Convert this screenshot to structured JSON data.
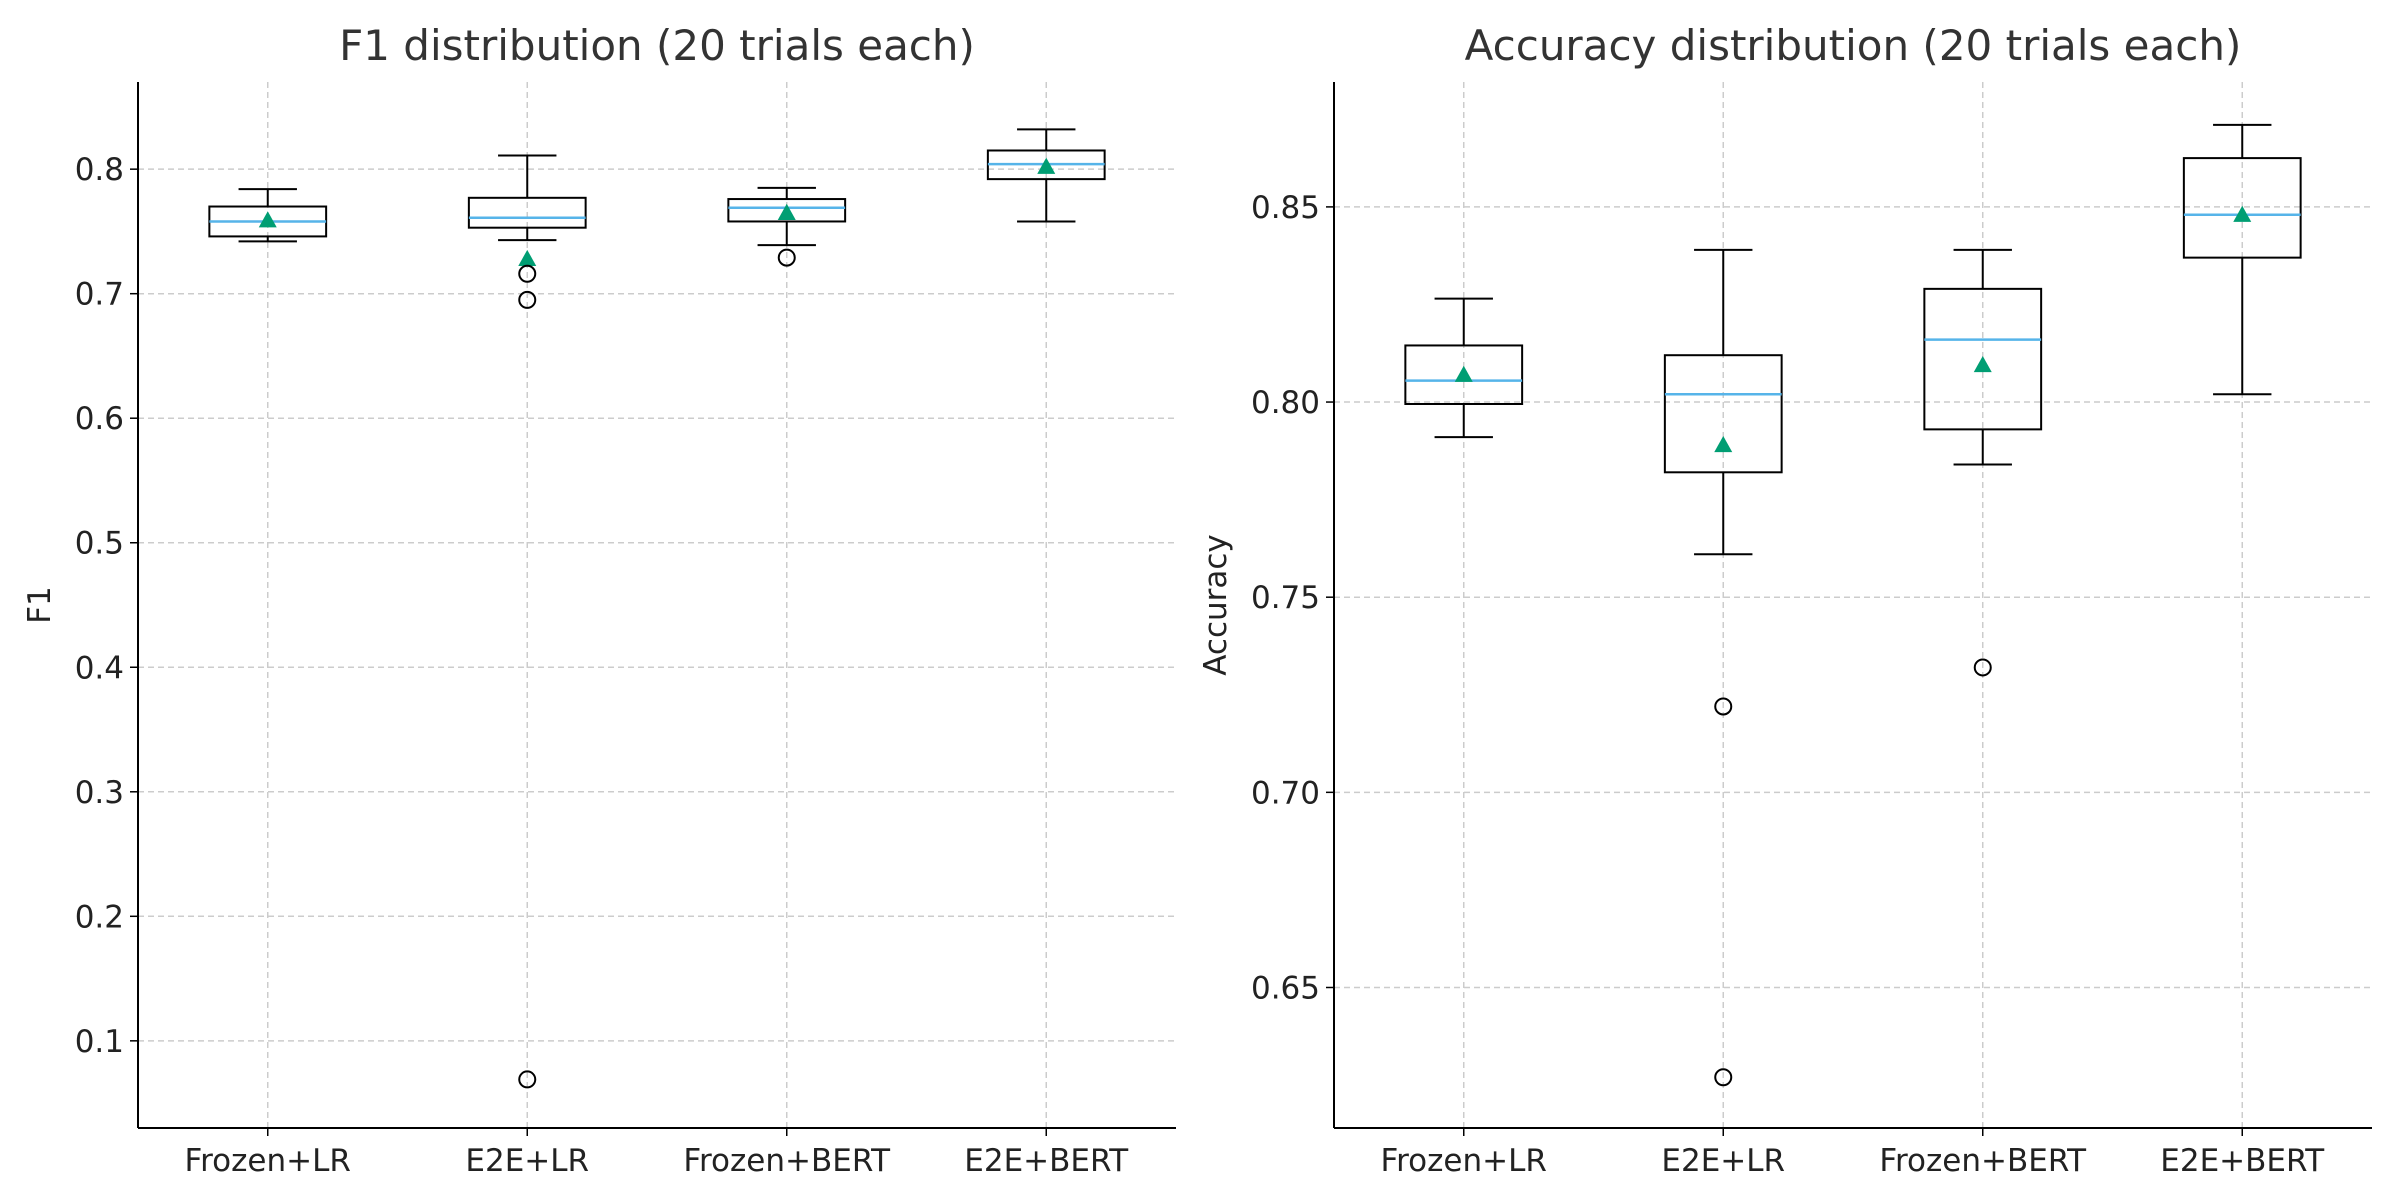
{
  "chart_data": [
    {
      "type": "box",
      "title": "F1 distribution (20 trials each)",
      "xlabel": "",
      "ylabel": "F1",
      "ylim": [
        0.03,
        0.87
      ],
      "yticks": [
        0.1,
        0.2,
        0.3,
        0.4,
        0.5,
        0.6,
        0.7,
        0.8
      ],
      "ytick_labels": [
        "0.1",
        "0.2",
        "0.3",
        "0.4",
        "0.5",
        "0.6",
        "0.7",
        "0.8"
      ],
      "categories": [
        "Frozen+LR",
        "E2E+LR",
        "Frozen+BERT",
        "E2E+BERT"
      ],
      "grid": true,
      "boxes": [
        {
          "whisker_low": 0.742,
          "q1": 0.746,
          "median": 0.758,
          "q3": 0.77,
          "whisker_high": 0.784,
          "mean": 0.759,
          "outliers": []
        },
        {
          "whisker_low": 0.743,
          "q1": 0.753,
          "median": 0.761,
          "q3": 0.777,
          "whisker_high": 0.811,
          "mean": 0.728,
          "outliers": [
            0.716,
            0.695,
            0.069
          ]
        },
        {
          "whisker_low": 0.739,
          "q1": 0.758,
          "median": 0.769,
          "q3": 0.776,
          "whisker_high": 0.785,
          "mean": 0.765,
          "outliers": [
            0.729
          ]
        },
        {
          "whisker_low": 0.758,
          "q1": 0.792,
          "median": 0.804,
          "q3": 0.815,
          "whisker_high": 0.832,
          "mean": 0.802,
          "outliers": []
        }
      ]
    },
    {
      "type": "box",
      "title": "Accuracy distribution (20 trials each)",
      "xlabel": "",
      "ylabel": "Accuracy",
      "ylim": [
        0.614,
        0.882
      ],
      "yticks": [
        0.65,
        0.7,
        0.75,
        0.8,
        0.85
      ],
      "ytick_labels": [
        "0.65",
        "0.70",
        "0.75",
        "0.80",
        "0.85"
      ],
      "categories": [
        "Frozen+LR",
        "E2E+LR",
        "Frozen+BERT",
        "E2E+BERT"
      ],
      "grid": true,
      "boxes": [
        {
          "whisker_low": 0.791,
          "q1": 0.7995,
          "median": 0.8055,
          "q3": 0.8145,
          "whisker_high": 0.8265,
          "mean": 0.807,
          "outliers": []
        },
        {
          "whisker_low": 0.761,
          "q1": 0.782,
          "median": 0.802,
          "q3": 0.812,
          "whisker_high": 0.839,
          "mean": 0.789,
          "outliers": [
            0.722,
            0.627
          ]
        },
        {
          "whisker_low": 0.784,
          "q1": 0.793,
          "median": 0.816,
          "q3": 0.829,
          "whisker_high": 0.839,
          "mean": 0.8095,
          "outliers": [
            0.732
          ]
        },
        {
          "whisker_low": 0.802,
          "q1": 0.837,
          "median": 0.848,
          "q3": 0.8625,
          "whisker_high": 0.871,
          "mean": 0.848,
          "outliers": []
        }
      ]
    }
  ],
  "colors": {
    "median": "#56B4E9",
    "mean": "#009E73",
    "box": "#000000",
    "grid": "#cccccc",
    "title": "#333333",
    "text": "#222222"
  }
}
